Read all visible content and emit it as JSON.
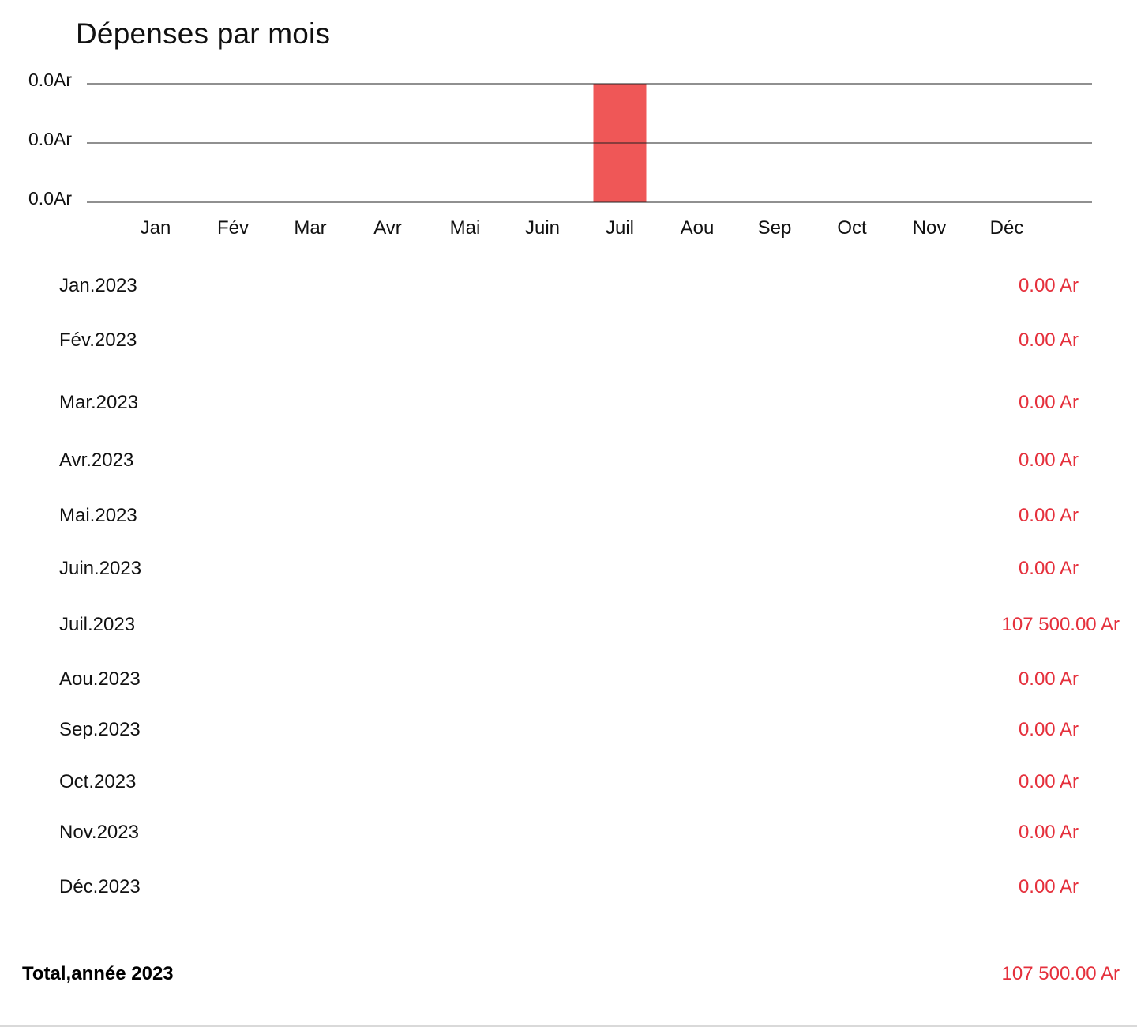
{
  "chart_data": {
    "type": "bar",
    "title": "Dépenses par mois",
    "categories": [
      "Jan",
      "Fév",
      "Mar",
      "Avr",
      "Mai",
      "Juin",
      "Juil",
      "Aou",
      "Sep",
      "Oct",
      "Nov",
      "Déc"
    ],
    "values": [
      0,
      0,
      0,
      0,
      0,
      0,
      107500,
      0,
      0,
      0,
      0,
      0
    ],
    "ytick_labels": [
      "0.0Ar",
      "0.0Ar",
      "0.0Ar"
    ],
    "ylim": [
      0,
      107500
    ],
    "bar_color": "#ef5757",
    "grid": true,
    "legend": "none"
  },
  "rows": [
    {
      "label": "Jan.2023",
      "value": "0.00 Ar"
    },
    {
      "label": "Fév.2023",
      "value": "0.00 Ar"
    },
    {
      "label": "Mar.2023",
      "value": "0.00 Ar"
    },
    {
      "label": "Avr.2023",
      "value": "0.00 Ar"
    },
    {
      "label": "Mai.2023",
      "value": "0.00 Ar"
    },
    {
      "label": "Juin.2023",
      "value": "0.00 Ar"
    },
    {
      "label": "Juil.2023",
      "value": "107 500.00 Ar"
    },
    {
      "label": "Aou.2023",
      "value": "0.00 Ar"
    },
    {
      "label": "Sep.2023",
      "value": "0.00 Ar"
    },
    {
      "label": "Oct.2023",
      "value": "0.00 Ar"
    },
    {
      "label": "Nov.2023",
      "value": "0.00 Ar"
    },
    {
      "label": "Déc.2023",
      "value": "0.00 Ar"
    }
  ],
  "total": {
    "label": "Total,année 2023",
    "value": "107 500.00 Ar"
  },
  "colors": {
    "amount_text": "#e5303c",
    "bar": "#ef5757"
  }
}
